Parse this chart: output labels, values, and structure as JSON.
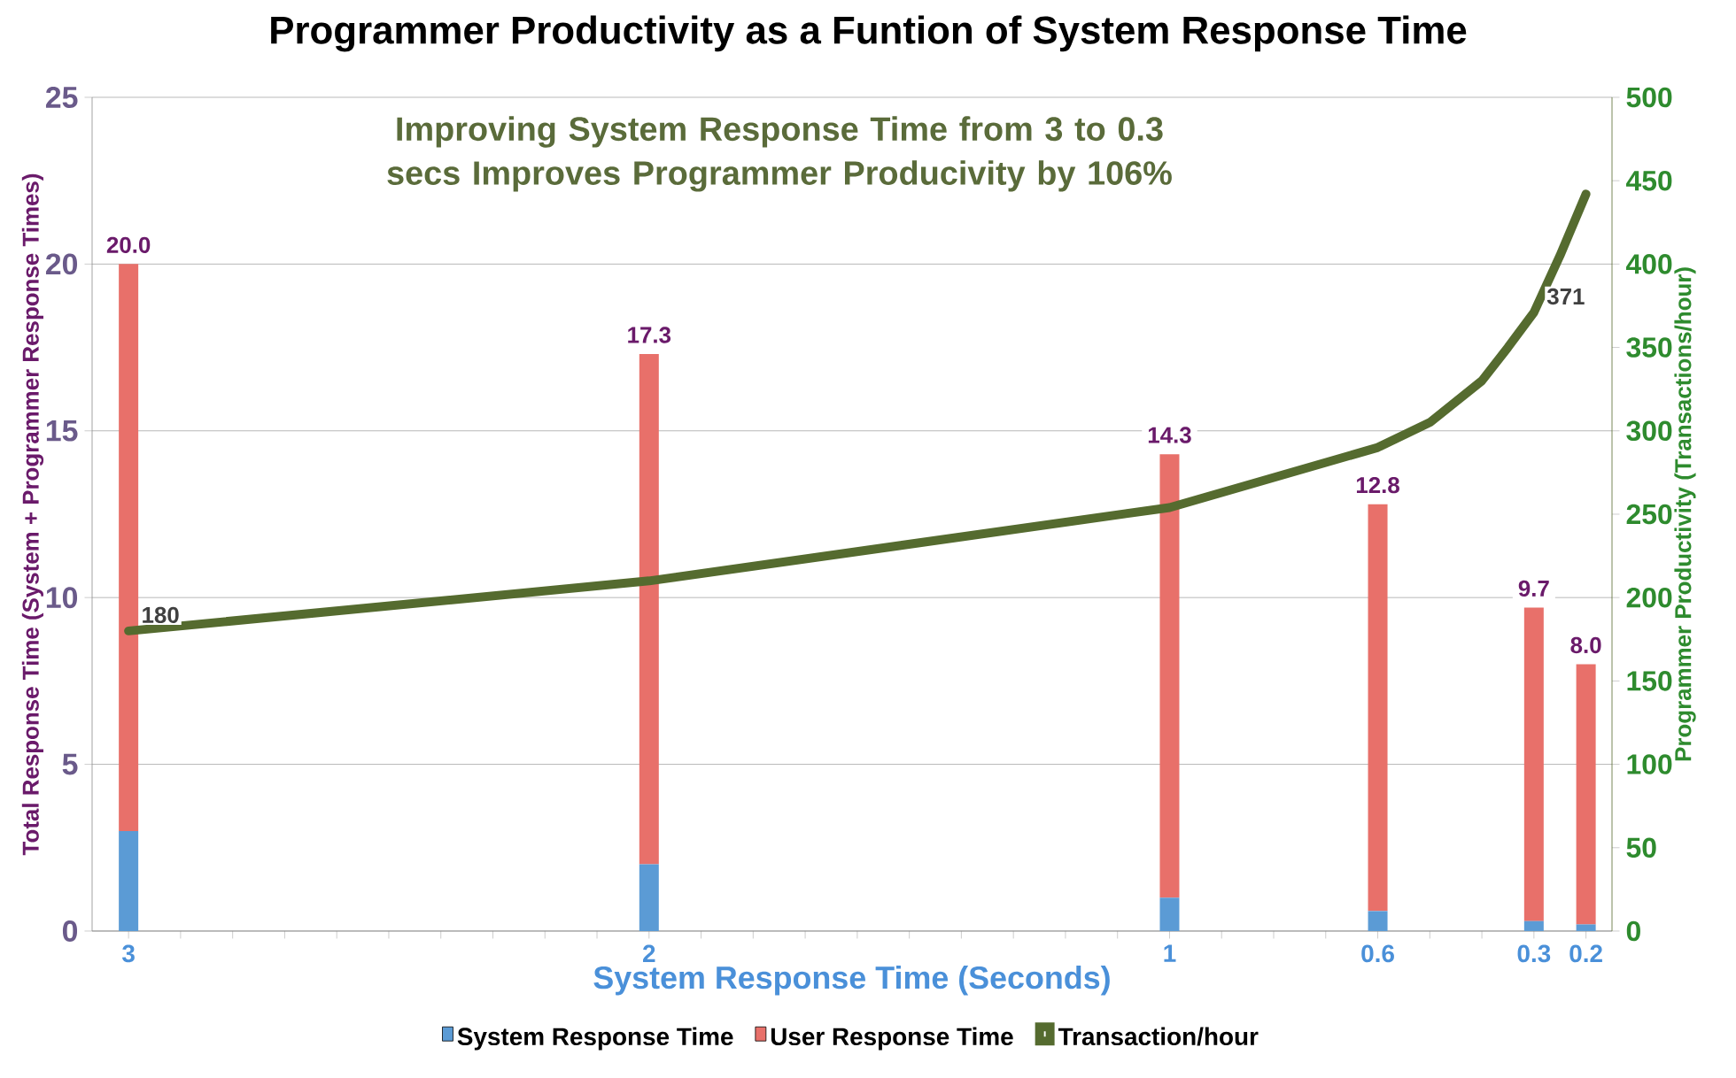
{
  "chart_data": {
    "type": "bar",
    "title": "Programmer Productivity as a Funtion of System Response Time",
    "xlabel": "System Response Time (Seconds)",
    "ylabel": "Total Response Time (System + Programmer Response Times)",
    "y2label": "Programmer Productivity (Transactions/hour)",
    "annotations": [
      "Improving System Response Time from 3 to 0.3 secs Improves Programmer Producivity by 106%"
    ],
    "x": [
      3,
      2,
      1,
      0.6,
      0.3,
      0.2
    ],
    "stacked": true,
    "series": [
      {
        "name": "System Response Time",
        "color": "#5b9bd5",
        "values": [
          3,
          2,
          1,
          0.6,
          0.3,
          0.2
        ]
      },
      {
        "name": "User Response Time",
        "color": "#e8706a",
        "values": [
          17.0,
          15.3,
          13.3,
          12.2,
          9.4,
          7.8
        ]
      },
      {
        "name": "Transaction/hour",
        "type": "line",
        "axis": "y2",
        "color": "#556b2f",
        "x": [
          3,
          2,
          1,
          0.6,
          0.5,
          0.4,
          0.35,
          0.3,
          0.25,
          0.2
        ],
        "values": [
          180,
          210,
          254,
          290,
          305,
          330,
          350,
          371,
          405,
          442
        ],
        "value_labels": [
          "180",
          null,
          null,
          null,
          null,
          null,
          null,
          "371",
          null,
          null
        ]
      }
    ],
    "totals": [
      "20.0",
      "17.3",
      "14.3",
      "12.8",
      "9.7",
      "8.0"
    ],
    "xlim": [
      3.07,
      0.15
    ],
    "xticks": [
      {
        "value": 3,
        "label": "3"
      },
      {
        "value": 2.9,
        "label": null
      },
      {
        "value": 2.8,
        "label": null
      },
      {
        "value": 2.7,
        "label": null
      },
      {
        "value": 2.6,
        "label": null
      },
      {
        "value": 2.5,
        "label": null
      },
      {
        "value": 2.4,
        "label": null
      },
      {
        "value": 2.3,
        "label": null
      },
      {
        "value": 2.2,
        "label": null
      },
      {
        "value": 2.1,
        "label": null
      },
      {
        "value": 2,
        "label": "2"
      },
      {
        "value": 1.9,
        "label": null
      },
      {
        "value": 1.8,
        "label": null
      },
      {
        "value": 1.7,
        "label": null
      },
      {
        "value": 1.6,
        "label": null
      },
      {
        "value": 1.5,
        "label": null
      },
      {
        "value": 1.4,
        "label": null
      },
      {
        "value": 1.3,
        "label": null
      },
      {
        "value": 1.2,
        "label": null
      },
      {
        "value": 1.1,
        "label": null
      },
      {
        "value": 1,
        "label": "1"
      },
      {
        "value": 0.9,
        "label": null
      },
      {
        "value": 0.8,
        "label": null
      },
      {
        "value": 0.7,
        "label": null
      },
      {
        "value": 0.6,
        "label": "0.6"
      },
      {
        "value": 0.5,
        "label": null
      },
      {
        "value": 0.4,
        "label": null
      },
      {
        "value": 0.3,
        "label": "0.3"
      },
      {
        "value": 0.2,
        "label": "0.2"
      }
    ],
    "ylim": [
      0,
      25
    ],
    "yticks": [
      0,
      5,
      10,
      15,
      20,
      25
    ],
    "y2lim": [
      0,
      500
    ],
    "y2ticks": [
      0,
      50,
      100,
      150,
      200,
      250,
      300,
      350,
      400,
      450,
      500
    ],
    "grid": "y",
    "legend": "bottom"
  }
}
